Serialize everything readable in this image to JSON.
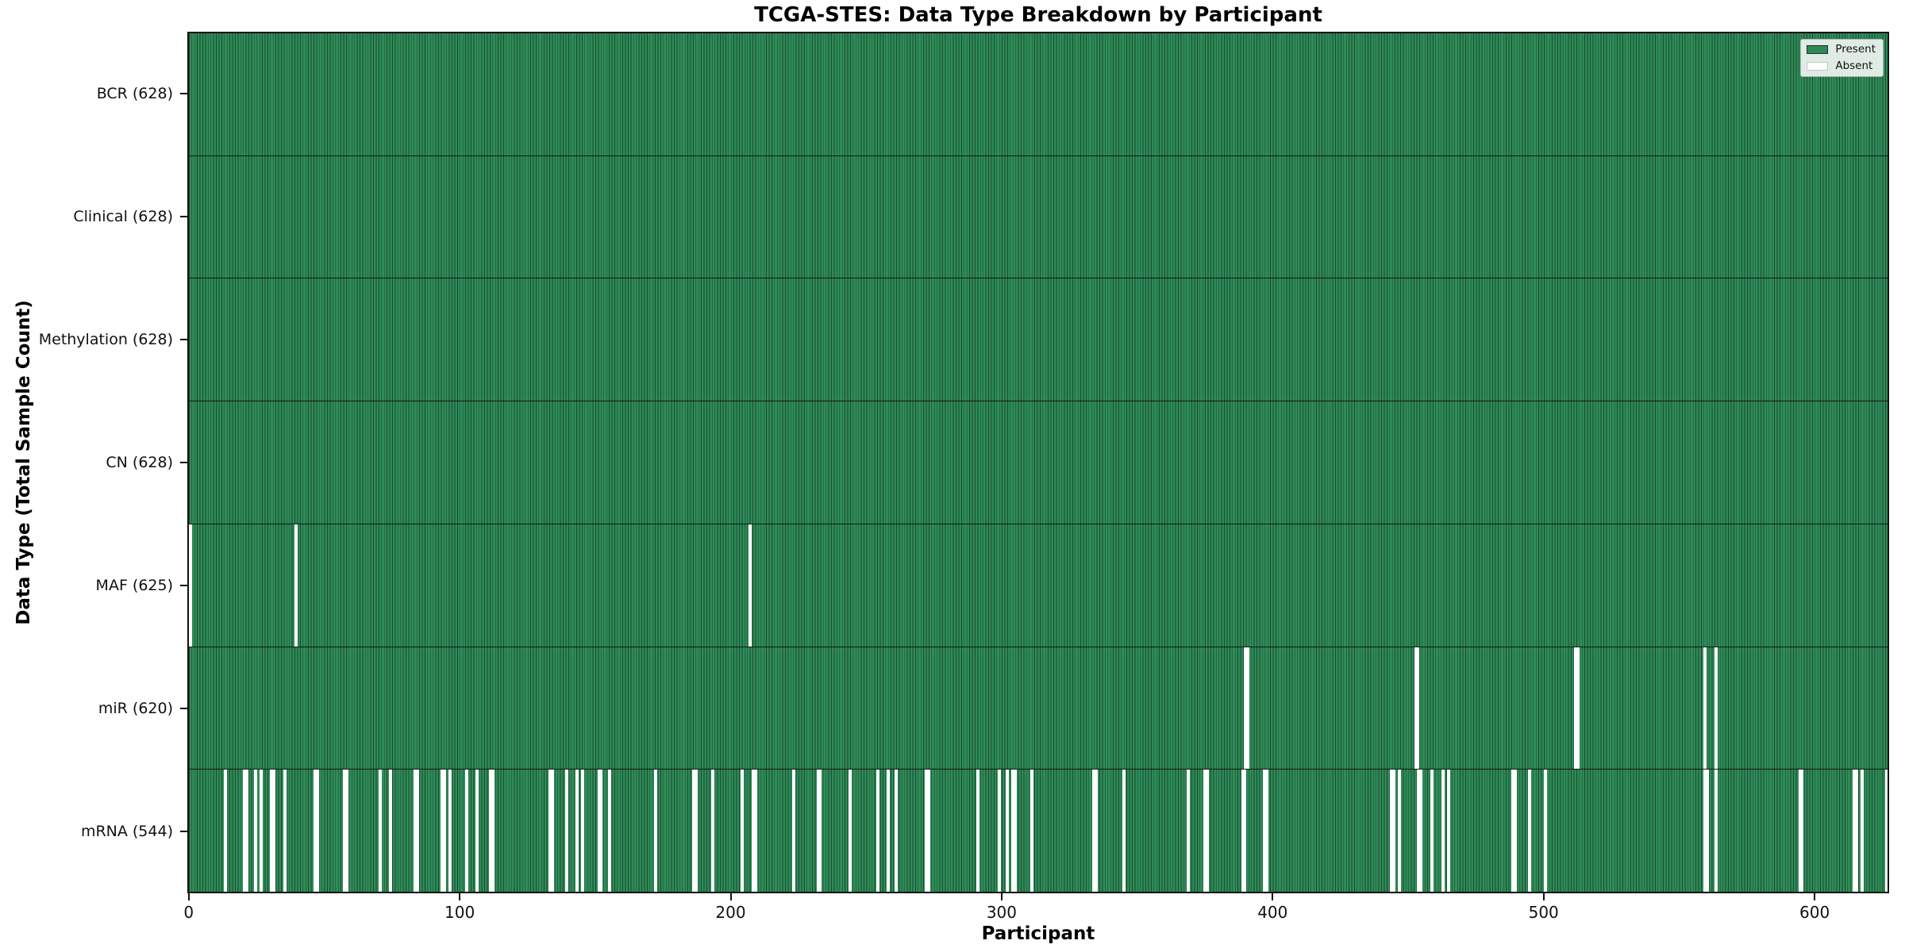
{
  "title": "TCGA-STES: Data Type Breakdown by Participant",
  "xlabel": "Participant",
  "ylabel": "Data Type (Total Sample Count)",
  "legend": {
    "present_label": "Present",
    "absent_label": "Absent"
  },
  "colors": {
    "present": "#2e8b57",
    "bar_edge": "#1a4a30",
    "absent": "#ffffff",
    "axis": "#111111"
  },
  "x_ticks": [
    0,
    100,
    200,
    300,
    400,
    500,
    600
  ],
  "chart_data": {
    "type": "heatmap",
    "title": "TCGA-STES: Data Type Breakdown by Participant",
    "xlabel": "Participant",
    "ylabel": "Data Type (Total Sample Count)",
    "legend": [
      "Present",
      "Absent"
    ],
    "legend_position": "upper right",
    "grid": false,
    "n_participants": 628,
    "x_range": [
      0,
      627
    ],
    "x_tick_values": [
      0,
      100,
      200,
      300,
      400,
      500,
      600
    ],
    "rows": [
      {
        "data_type": "BCR",
        "label": "BCR (628)",
        "present_count": 628,
        "absent_count": 0,
        "absent_participants": []
      },
      {
        "data_type": "Clinical",
        "label": "Clinical (628)",
        "present_count": 628,
        "absent_count": 0,
        "absent_participants": []
      },
      {
        "data_type": "Methylation",
        "label": "Methylation (628)",
        "present_count": 628,
        "absent_count": 0,
        "absent_participants": []
      },
      {
        "data_type": "CN",
        "label": "CN (628)",
        "present_count": 628,
        "absent_count": 0,
        "absent_participants": []
      },
      {
        "data_type": "MAF",
        "label": "MAF (625)",
        "present_count": 625,
        "absent_count": 3,
        "absent_participants": [
          0,
          39,
          207
        ]
      },
      {
        "data_type": "miR",
        "label": "miR (620)",
        "present_count": 620,
        "absent_count": 8,
        "absent_participants": [
          390,
          391,
          453,
          454,
          512,
          513,
          560,
          564
        ]
      },
      {
        "data_type": "mRNA",
        "label": "mRNA (544)",
        "present_count": 544,
        "absent_count": 84,
        "absent_participants": [
          13,
          20,
          21,
          24,
          26,
          30,
          31,
          35,
          46,
          47,
          57,
          58,
          70,
          74,
          83,
          84,
          93,
          94,
          96,
          102,
          106,
          111,
          112,
          133,
          134,
          139,
          143,
          145,
          151,
          152,
          155,
          172,
          186,
          187,
          193,
          204,
          208,
          209,
          223,
          232,
          233,
          244,
          254,
          258,
          261,
          272,
          273,
          291,
          299,
          302,
          304,
          305,
          311,
          334,
          335,
          345,
          369,
          375,
          376,
          389,
          390,
          397,
          398,
          444,
          445,
          447,
          454,
          455,
          459,
          463,
          465,
          489,
          490,
          495,
          501,
          560,
          561,
          564,
          595,
          596,
          615,
          616,
          618,
          627
        ]
      }
    ]
  }
}
